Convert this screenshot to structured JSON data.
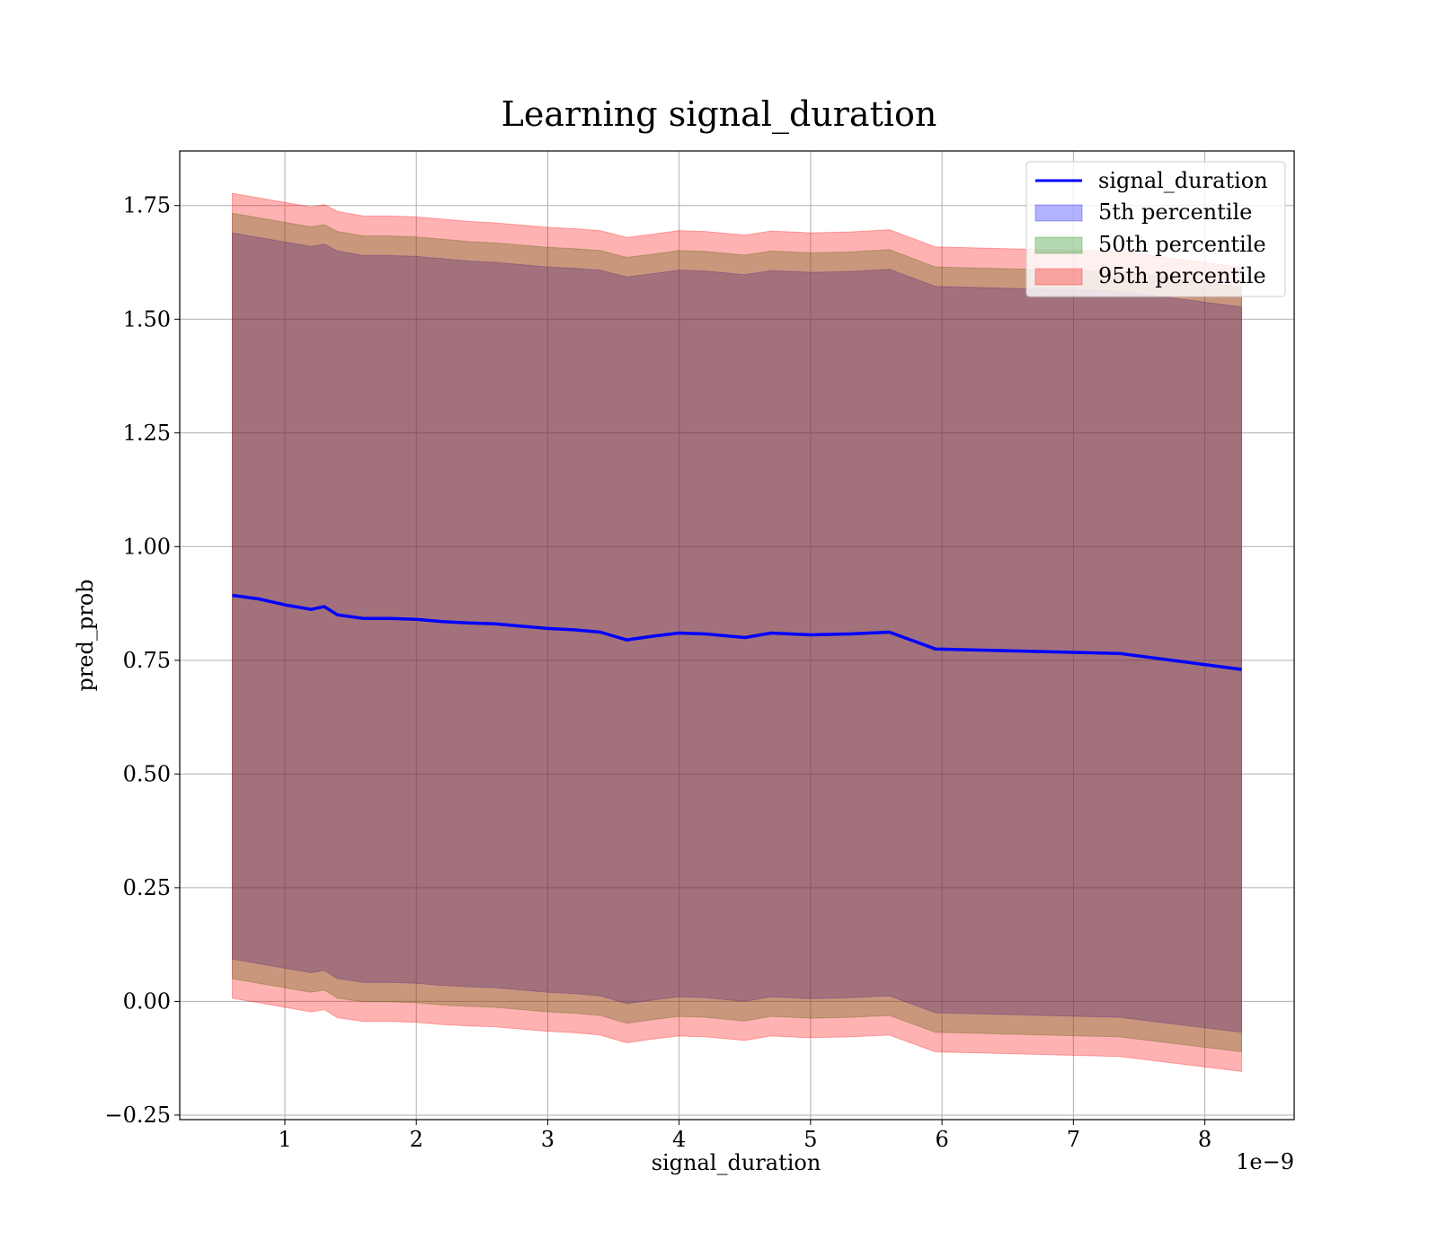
{
  "chart_data": {
    "type": "area",
    "title": "Learning signal_duration",
    "xlabel": "signal_duration",
    "ylabel": "pred_prob",
    "x_offset_label": "1e−9",
    "xlim": [
      0.2,
      8.68
    ],
    "ylim": [
      -0.26,
      1.87
    ],
    "grid": true,
    "legend_position": "upper right",
    "x_ticks": [
      {
        "value": 1,
        "label": "1"
      },
      {
        "value": 2,
        "label": "2"
      },
      {
        "value": 3,
        "label": "3"
      },
      {
        "value": 4,
        "label": "4"
      },
      {
        "value": 5,
        "label": "5"
      },
      {
        "value": 6,
        "label": "6"
      },
      {
        "value": 7,
        "label": "7"
      },
      {
        "value": 8,
        "label": "8"
      }
    ],
    "y_ticks": [
      {
        "value": -0.25,
        "label": "−0.25"
      },
      {
        "value": 0.0,
        "label": "0.00"
      },
      {
        "value": 0.25,
        "label": "0.25"
      },
      {
        "value": 0.5,
        "label": "0.50"
      },
      {
        "value": 0.75,
        "label": "0.75"
      },
      {
        "value": 1.0,
        "label": "1.00"
      },
      {
        "value": 1.25,
        "label": "1.25"
      },
      {
        "value": 1.5,
        "label": "1.50"
      },
      {
        "value": 1.75,
        "label": "1.75"
      }
    ],
    "x": [
      0.6,
      0.8,
      1.0,
      1.2,
      1.3,
      1.4,
      1.6,
      1.8,
      2.0,
      2.2,
      2.4,
      2.6,
      2.8,
      3.0,
      3.2,
      3.4,
      3.6,
      3.8,
      4.0,
      4.2,
      4.5,
      4.7,
      5.0,
      5.3,
      5.6,
      5.95,
      7.35,
      8.28
    ],
    "series": [
      {
        "name": "signal_duration",
        "kind": "line",
        "color": "#0000ff",
        "values": [
          0.893,
          0.885,
          0.872,
          0.862,
          0.868,
          0.85,
          0.842,
          0.842,
          0.84,
          0.835,
          0.832,
          0.83,
          0.825,
          0.82,
          0.817,
          0.812,
          0.795,
          0.803,
          0.81,
          0.808,
          0.8,
          0.81,
          0.806,
          0.808,
          0.812,
          0.775,
          0.765,
          0.73
        ]
      },
      {
        "name": "5th percentile",
        "kind": "band",
        "color": "#0000ff",
        "lower": [
          0.093,
          0.083,
          0.073,
          0.063,
          0.068,
          0.05,
          0.042,
          0.042,
          0.04,
          0.035,
          0.032,
          0.03,
          0.025,
          0.02,
          0.017,
          0.012,
          -0.005,
          0.003,
          0.01,
          0.008,
          0.0,
          0.01,
          0.006,
          0.008,
          0.012,
          -0.025,
          -0.035,
          -0.068
        ],
        "upper": [
          1.69,
          1.68,
          1.67,
          1.66,
          1.665,
          1.65,
          1.64,
          1.64,
          1.638,
          1.633,
          1.628,
          1.625,
          1.62,
          1.615,
          1.612,
          1.608,
          1.593,
          1.6,
          1.608,
          1.606,
          1.598,
          1.607,
          1.603,
          1.605,
          1.61,
          1.572,
          1.562,
          1.527
        ]
      },
      {
        "name": "50th percentile",
        "kind": "band",
        "color": "#008000",
        "lower": [
          0.05,
          0.04,
          0.03,
          0.02,
          0.025,
          0.007,
          -0.001,
          -0.001,
          -0.003,
          -0.008,
          -0.011,
          -0.013,
          -0.018,
          -0.023,
          -0.026,
          -0.031,
          -0.048,
          -0.04,
          -0.033,
          -0.035,
          -0.043,
          -0.033,
          -0.037,
          -0.035,
          -0.031,
          -0.068,
          -0.078,
          -0.111
        ],
        "upper": [
          1.733,
          1.723,
          1.713,
          1.703,
          1.708,
          1.693,
          1.683,
          1.683,
          1.681,
          1.676,
          1.671,
          1.668,
          1.663,
          1.658,
          1.655,
          1.651,
          1.636,
          1.643,
          1.651,
          1.649,
          1.641,
          1.65,
          1.646,
          1.648,
          1.653,
          1.615,
          1.605,
          1.57
        ]
      },
      {
        "name": "95th percentile",
        "kind": "band",
        "color": "#ff0000",
        "lower": [
          0.007,
          -0.003,
          -0.013,
          -0.023,
          -0.018,
          -0.036,
          -0.044,
          -0.044,
          -0.046,
          -0.051,
          -0.054,
          -0.056,
          -0.061,
          -0.066,
          -0.069,
          -0.074,
          -0.091,
          -0.083,
          -0.076,
          -0.078,
          -0.086,
          -0.076,
          -0.08,
          -0.078,
          -0.074,
          -0.111,
          -0.121,
          -0.154
        ],
        "upper": [
          1.777,
          1.767,
          1.757,
          1.747,
          1.752,
          1.737,
          1.727,
          1.727,
          1.725,
          1.72,
          1.715,
          1.712,
          1.707,
          1.702,
          1.699,
          1.695,
          1.68,
          1.687,
          1.695,
          1.693,
          1.685,
          1.694,
          1.69,
          1.692,
          1.697,
          1.659,
          1.649,
          1.614
        ]
      }
    ]
  }
}
